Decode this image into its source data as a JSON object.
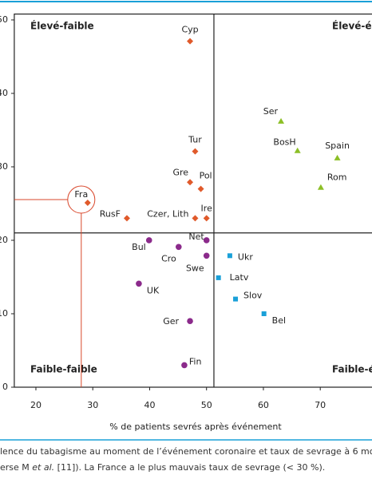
{
  "chart_data": {
    "type": "scatter",
    "xlabel": "% de patients sevrés après événement",
    "xlim": [
      16.2,
      80.5
    ],
    "xticks": [
      20,
      30,
      40,
      50,
      60,
      70
    ],
    "ylim": [
      0,
      50.8
    ],
    "yticks": [
      0,
      10,
      20,
      30,
      40,
      50
    ],
    "quadrant_lines": {
      "x": 51.3,
      "y": 21
    },
    "quadrant_labels": [
      "Élevé-faible",
      "Élevé-élevé",
      "Faible-faible",
      "Faible-élevé"
    ],
    "series": [
      {
        "color": "#e05a2b",
        "marker": "diamond",
        "labels": [
          "Cyp",
          "Tur",
          "Gre",
          "Pol",
          "Fra",
          "RusF",
          "Czer, Lith",
          "Ire"
        ],
        "x": [
          47.1,
          48,
          47.1,
          49,
          29.1,
          36,
          48,
          50
        ],
        "values": [
          47.1,
          32.1,
          27.9,
          27,
          25.1,
          23,
          23,
          23
        ]
      },
      {
        "color": "#8cbf26",
        "marker": "triangle",
        "labels": [
          "Ser",
          "BosH",
          "Spain",
          "Rom"
        ],
        "x": [
          63.1,
          66,
          73,
          70.1
        ],
        "values": [
          36.2,
          32.2,
          31.2,
          27.2
        ]
      },
      {
        "color": "#8b2a8b",
        "marker": "circle",
        "labels": [
          "Bul",
          "Net",
          "Cro",
          "Swe",
          "UK",
          "Ger",
          "Fin"
        ],
        "x": [
          39.9,
          50,
          45.1,
          50,
          38.1,
          47.1,
          46.1
        ],
        "values": [
          20,
          20,
          19.1,
          17.9,
          14.1,
          9,
          3
        ]
      },
      {
        "color": "#1aa0d8",
        "marker": "square",
        "labels": [
          "Ukr",
          "Latv",
          "Slov",
          "Bel"
        ],
        "x": [
          54.1,
          52.1,
          55.1,
          60.1
        ],
        "values": [
          17.9,
          14.9,
          12,
          10
        ]
      }
    ],
    "highlight": "Fra"
  },
  "caption": {
    "line1": "lence du tabagisme au moment de l’événement coronaire et taux de sevrage à 6 mo",
    "line2": [
      "erse M ",
      "et al.",
      " [11]). La France a le plus mauvais taux de sevrage (< 30 %)."
    ]
  }
}
